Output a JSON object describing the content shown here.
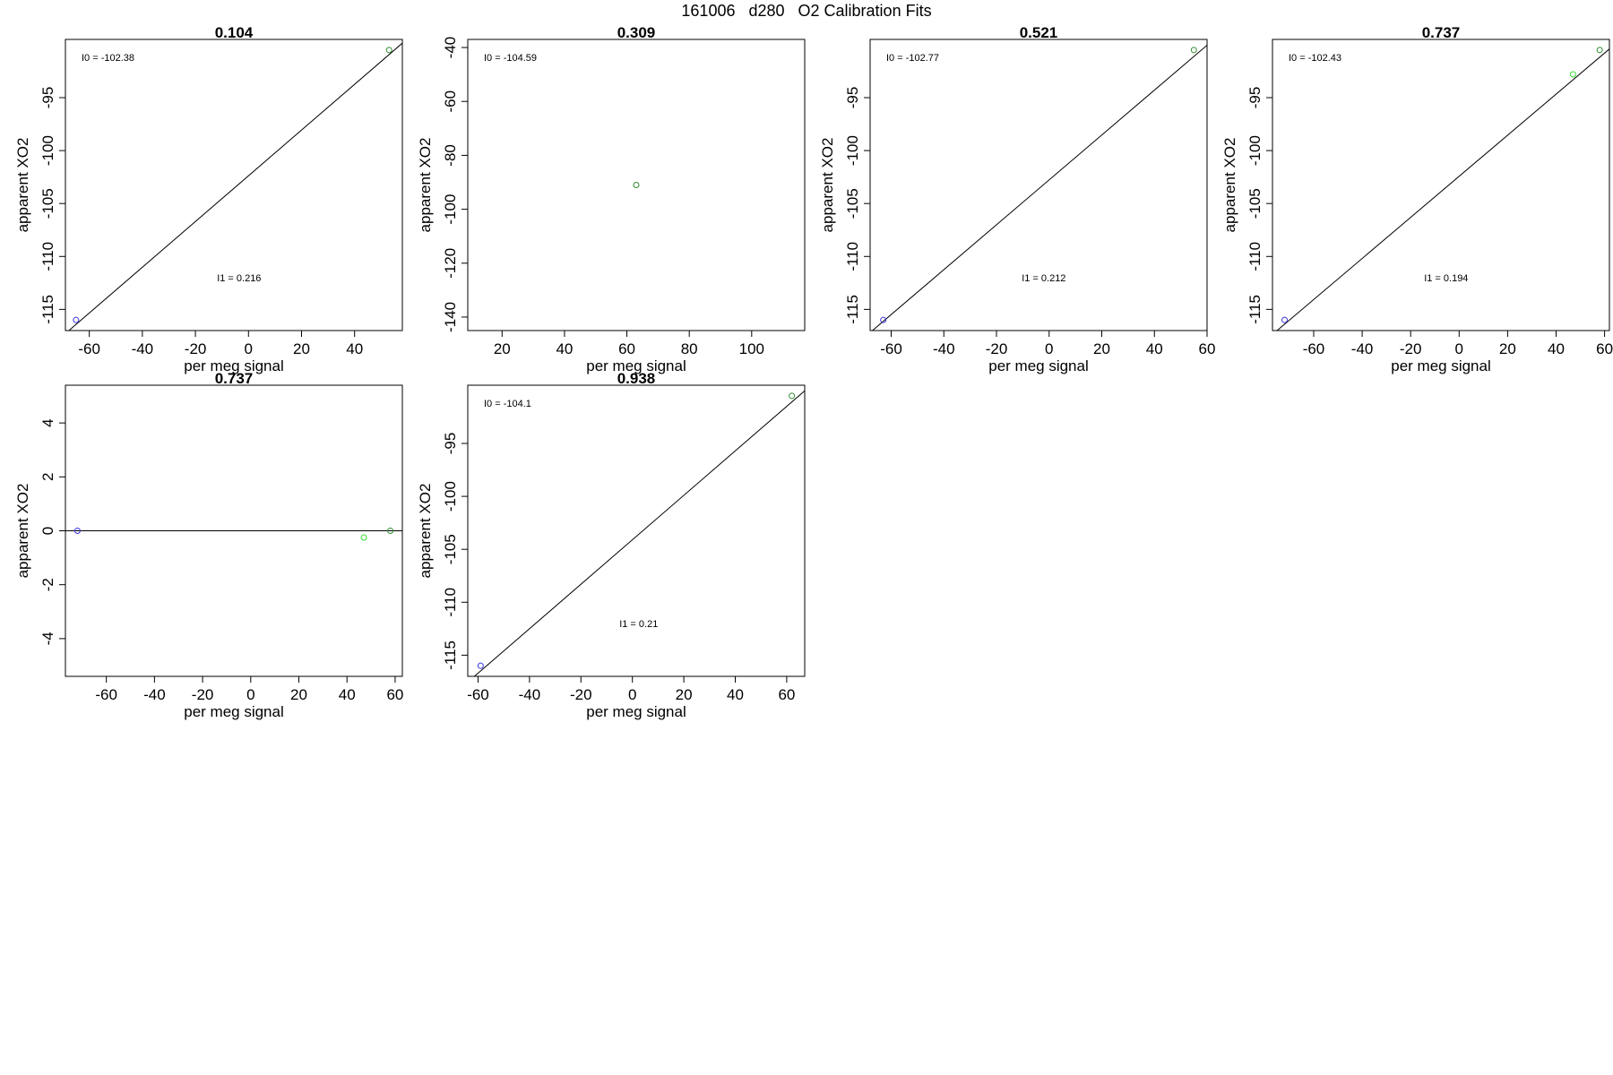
{
  "title": "161006   d280   O2 Calibration Fits",
  "colors": {
    "line": "#000000",
    "blue_point": "#3333dd",
    "green_point": "#2e8b2e",
    "light_green_point": "#33dd33"
  },
  "chart_data": [
    {
      "type": "scatter",
      "title": "0.104",
      "xlabel": "per meg signal",
      "ylabel": "apparent XO2",
      "xlim": [
        -69,
        58
      ],
      "ylim": [
        -117,
        -89.5
      ],
      "xticks": [
        -60,
        -40,
        -20,
        0,
        20,
        40
      ],
      "yticks": [
        -95,
        -100,
        -105,
        -110,
        -115
      ],
      "points": [
        {
          "x": -65,
          "y": -116,
          "color": "blue"
        },
        {
          "x": 53,
          "y": -90.5,
          "color": "green"
        }
      ],
      "fit_line": {
        "intercept": -102.38,
        "slope": 0.216
      },
      "annotations": [
        "I0 =  -102.38",
        "I1 = 0.216"
      ]
    },
    {
      "type": "scatter",
      "title": "0.309",
      "xlabel": "per meg signal",
      "ylabel": "apparent XO2",
      "xlim": [
        9,
        117
      ],
      "ylim": [
        -145,
        -37
      ],
      "xticks": [
        20,
        40,
        60,
        80,
        100
      ],
      "yticks": [
        -40,
        -60,
        -80,
        -100,
        -120,
        -140
      ],
      "points": [
        {
          "x": 63,
          "y": -91,
          "color": "green"
        }
      ],
      "fit_line": null,
      "annotations": [
        "I0 =  -104.59"
      ]
    },
    {
      "type": "scatter",
      "title": "0.521",
      "xlabel": "per meg signal",
      "ylabel": "apparent XO2",
      "xlim": [
        -68,
        60
      ],
      "ylim": [
        -117,
        -89.5
      ],
      "xticks": [
        -60,
        -40,
        -20,
        0,
        20,
        40,
        60
      ],
      "yticks": [
        -95,
        -100,
        -105,
        -110,
        -115
      ],
      "points": [
        {
          "x": -63,
          "y": -116,
          "color": "blue"
        },
        {
          "x": 55,
          "y": -90.5,
          "color": "green"
        }
      ],
      "fit_line": {
        "intercept": -102.77,
        "slope": 0.212
      },
      "annotations": [
        "I0 =  -102.77",
        "I1 = 0.212"
      ]
    },
    {
      "type": "scatter",
      "title": "0.737",
      "xlabel": "per meg signal",
      "ylabel": "apparent XO2",
      "xlim": [
        -77,
        62
      ],
      "ylim": [
        -117,
        -89.5
      ],
      "xticks": [
        -60,
        -40,
        -20,
        0,
        20,
        40,
        60
      ],
      "yticks": [
        -95,
        -100,
        -105,
        -110,
        -115
      ],
      "points": [
        {
          "x": -72,
          "y": -116,
          "color": "blue"
        },
        {
          "x": 47,
          "y": -92.8,
          "color": "light_green"
        },
        {
          "x": 58,
          "y": -90.5,
          "color": "green"
        }
      ],
      "fit_line": {
        "intercept": -102.43,
        "slope": 0.194
      },
      "annotations": [
        "I0 =  -102.43",
        "I1 = 0.194"
      ]
    },
    {
      "type": "scatter",
      "title": "0.737",
      "xlabel": "per meg signal",
      "ylabel": "apparent XO2",
      "xlim": [
        -77,
        63
      ],
      "ylim": [
        -5.4,
        5.4
      ],
      "xticks": [
        -60,
        -40,
        -20,
        0,
        20,
        40,
        60
      ],
      "yticks": [
        4,
        2,
        0,
        -2,
        -4
      ],
      "points": [
        {
          "x": -72,
          "y": 0,
          "color": "blue"
        },
        {
          "x": 47,
          "y": -0.25,
          "color": "light_green"
        },
        {
          "x": 58,
          "y": 0,
          "color": "green"
        }
      ],
      "fit_line": {
        "intercept": 0,
        "slope": 0
      },
      "annotations": []
    },
    {
      "type": "scatter",
      "title": "0.938",
      "xlabel": "per meg signal",
      "ylabel": "apparent XO2",
      "xlim": [
        -64,
        67
      ],
      "ylim": [
        -117,
        -89.5
      ],
      "xticks": [
        -60,
        -40,
        -20,
        0,
        20,
        40,
        60
      ],
      "yticks": [
        -95,
        -100,
        -105,
        -110,
        -115
      ],
      "points": [
        {
          "x": -59,
          "y": -116,
          "color": "blue"
        },
        {
          "x": 62,
          "y": -90.5,
          "color": "green"
        }
      ],
      "fit_line": {
        "intercept": -104.1,
        "slope": 0.21
      },
      "annotations": [
        "I0 =  -104.1",
        "I1 =  0.21"
      ]
    }
  ]
}
